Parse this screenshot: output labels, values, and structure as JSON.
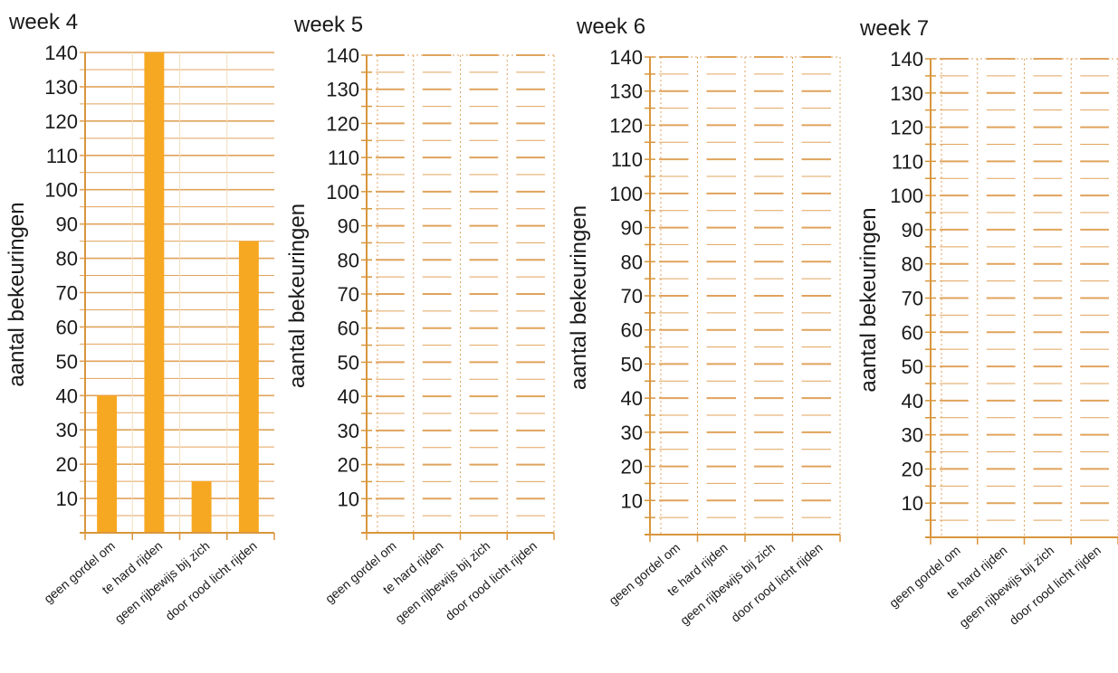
{
  "chart_data": [
    {
      "type": "bar",
      "title": "week 4",
      "ylabel": "aantal bekeuringen",
      "categories": [
        "geen gordel om",
        "te hard rijden",
        "geen rijbewijs bij zich",
        "door rood licht rijden"
      ],
      "values": [
        40,
        140,
        15,
        85
      ],
      "ylim": [
        0,
        140
      ],
      "yticks": [
        10,
        20,
        30,
        40,
        50,
        60,
        70,
        80,
        90,
        100,
        110,
        120,
        130,
        140
      ],
      "grid": true,
      "bar_color": "#f7a823"
    },
    {
      "type": "bar",
      "title": "week 5",
      "ylabel": "aantal bekeuringen",
      "categories": [
        "geen gordel om",
        "te hard rijden",
        "geen rijbewijs bij zich",
        "door rood licht rijden"
      ],
      "values": [
        null,
        null,
        null,
        null
      ],
      "ylim": [
        0,
        140
      ],
      "yticks": [
        10,
        20,
        30,
        40,
        50,
        60,
        70,
        80,
        90,
        100,
        110,
        120,
        130,
        140
      ],
      "grid": true
    },
    {
      "type": "bar",
      "title": "week 6",
      "ylabel": "aantal bekeuringen",
      "categories": [
        "geen gordel om",
        "te hard rijden",
        "geen rijbewijs bij zich",
        "door rood licht rijden"
      ],
      "values": [
        null,
        null,
        null,
        null
      ],
      "ylim": [
        0,
        140
      ],
      "yticks": [
        10,
        20,
        30,
        40,
        50,
        60,
        70,
        80,
        90,
        100,
        110,
        120,
        130,
        140
      ],
      "grid": true
    },
    {
      "type": "bar",
      "title": "week 7",
      "ylabel": "aantal bekeuringen",
      "categories": [
        "geen gordel om",
        "te hard rijden",
        "geen rijbewijs bij zich",
        "door rood licht rijden"
      ],
      "values": [
        null,
        null,
        null,
        null
      ],
      "ylim": [
        0,
        140
      ],
      "yticks": [
        10,
        20,
        30,
        40,
        50,
        60,
        70,
        80,
        90,
        100,
        110,
        120,
        130,
        140
      ],
      "grid": true
    }
  ],
  "colors": {
    "bar": "#f7a823",
    "grid": "#e0a35c",
    "axis": "#d8963c",
    "text": "#1a1a1a"
  }
}
